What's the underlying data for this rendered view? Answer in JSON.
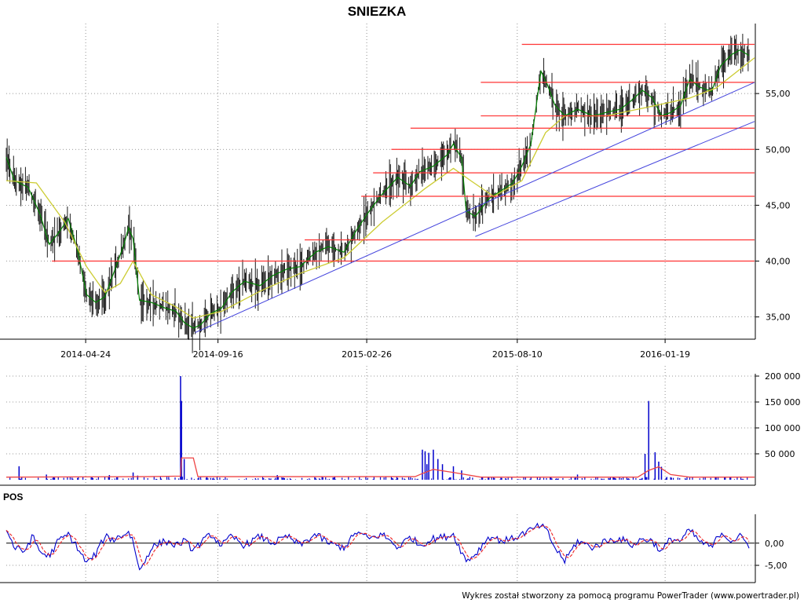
{
  "chart_data": [
    {
      "type": "line",
      "panel": "price",
      "title": "SNIEZKA",
      "series": [],
      "x_ticks": [
        "2014-04-24",
        "2014-09-16",
        "2015-02-26",
        "2015-08-10",
        "2016-01-19"
      ],
      "x_range": [
        "2014-01-27",
        "2016-04-26"
      ],
      "y_ticks": [
        "35,00",
        "40,00",
        "45,00",
        "50,00",
        "55,00"
      ],
      "ylim": [
        33.5,
        60
      ],
      "grid": "dotted",
      "close_path": [
        [
          "2014-01-27",
          49.3
        ],
        [
          "2014-02-05",
          47.2
        ],
        [
          "2014-02-20",
          46.6
        ],
        [
          "2014-03-05",
          44.2
        ],
        [
          "2014-03-15",
          41.5
        ],
        [
          "2014-03-25",
          42.5
        ],
        [
          "2014-04-05",
          43.8
        ],
        [
          "2014-04-15",
          41.0
        ],
        [
          "2014-04-25",
          37.0
        ],
        [
          "2014-05-05",
          36.3
        ],
        [
          "2014-05-15",
          36.8
        ],
        [
          "2014-05-25",
          39.0
        ],
        [
          "2014-06-05",
          41.5
        ],
        [
          "2014-06-10",
          43.0
        ],
        [
          "2014-06-15",
          42.0
        ],
        [
          "2014-06-22",
          36.5
        ],
        [
          "2014-07-05",
          36.3
        ],
        [
          "2014-07-20",
          35.8
        ],
        [
          "2014-08-01",
          35.5
        ],
        [
          "2014-08-10",
          34.5
        ],
        [
          "2014-08-20",
          34.0
        ],
        [
          "2014-08-28",
          34.3
        ],
        [
          "2014-09-08",
          35.3
        ],
        [
          "2014-09-20",
          35.8
        ],
        [
          "2014-10-01",
          37.2
        ],
        [
          "2014-10-15",
          38.2
        ],
        [
          "2014-11-01",
          37.8
        ],
        [
          "2014-11-15",
          38.7
        ],
        [
          "2014-12-01",
          39.3
        ],
        [
          "2014-12-15",
          39.5
        ],
        [
          "2015-01-01",
          40.8
        ],
        [
          "2015-01-15",
          41.3
        ],
        [
          "2015-02-01",
          40.8
        ],
        [
          "2015-02-15",
          42.8
        ],
        [
          "2015-03-01",
          44.5
        ],
        [
          "2015-03-15",
          46.0
        ],
        [
          "2015-04-01",
          47.5
        ],
        [
          "2015-04-15",
          46.7
        ],
        [
          "2015-04-25",
          48.0
        ],
        [
          "2015-05-10",
          48.5
        ],
        [
          "2015-05-25",
          49.5
        ],
        [
          "2015-06-01",
          50.5
        ],
        [
          "2015-06-10",
          49.2
        ],
        [
          "2015-06-15",
          44.5
        ],
        [
          "2015-06-25",
          44.0
        ],
        [
          "2015-07-10",
          45.6
        ],
        [
          "2015-07-25",
          46.4
        ],
        [
          "2015-08-05",
          47.0
        ],
        [
          "2015-08-15",
          48.5
        ],
        [
          "2015-08-25",
          50.5
        ],
        [
          "2015-09-05",
          57.0
        ],
        [
          "2015-09-12",
          55.8
        ],
        [
          "2015-09-20",
          54.0
        ],
        [
          "2015-10-01",
          53.0
        ],
        [
          "2015-10-15",
          53.6
        ],
        [
          "2015-11-01",
          53.0
        ],
        [
          "2015-11-15",
          53.3
        ],
        [
          "2015-12-01",
          53.6
        ],
        [
          "2015-12-15",
          54.5
        ],
        [
          "2015-12-25",
          55.3
        ],
        [
          "2016-01-05",
          54.6
        ],
        [
          "2016-01-15",
          53.0
        ],
        [
          "2016-01-25",
          53.3
        ],
        [
          "2016-02-05",
          53.9
        ],
        [
          "2016-02-15",
          56.3
        ],
        [
          "2016-02-25",
          55.6
        ],
        [
          "2016-03-10",
          55.2
        ],
        [
          "2016-03-20",
          57.5
        ],
        [
          "2016-04-01",
          58.5
        ],
        [
          "2016-04-10",
          58.9
        ],
        [
          "2016-04-20",
          58.4
        ]
      ],
      "moving_average": [
        [
          "2014-01-27",
          47.2
        ],
        [
          "2014-03-01",
          47.0
        ],
        [
          "2014-04-01",
          43.5
        ],
        [
          "2014-04-25",
          39.5
        ],
        [
          "2014-05-15",
          37.2
        ],
        [
          "2014-06-01",
          38.0
        ],
        [
          "2014-06-15",
          40.0
        ],
        [
          "2014-07-05",
          37.0
        ],
        [
          "2014-08-01",
          35.9
        ],
        [
          "2014-08-20",
          34.9
        ],
        [
          "2014-09-20",
          35.5
        ],
        [
          "2014-11-01",
          37.3
        ],
        [
          "2014-12-15",
          38.9
        ],
        [
          "2015-02-01",
          40.3
        ],
        [
          "2015-03-15",
          43.5
        ],
        [
          "2015-05-01",
          46.5
        ],
        [
          "2015-06-01",
          48.3
        ],
        [
          "2015-06-20",
          47.2
        ],
        [
          "2015-07-15",
          45.8
        ],
        [
          "2015-08-15",
          47.2
        ],
        [
          "2015-09-10",
          51.5
        ],
        [
          "2015-10-01",
          53.0
        ],
        [
          "2015-11-15",
          53.0
        ],
        [
          "2016-01-01",
          53.8
        ],
        [
          "2016-02-15",
          54.6
        ],
        [
          "2016-03-15",
          55.5
        ],
        [
          "2016-04-26",
          58.2
        ]
      ],
      "resistance_levels": [
        {
          "value": 40.0,
          "from": "2014-03-18"
        },
        {
          "value": 41.9,
          "from": "2014-12-20"
        },
        {
          "value": 45.8,
          "from": "2015-02-20"
        },
        {
          "value": 47.9,
          "from": "2015-03-05"
        },
        {
          "value": 50.0,
          "from": "2015-03-25"
        },
        {
          "value": 51.9,
          "from": "2015-04-15"
        },
        {
          "value": 53.0,
          "from": "2015-07-01"
        },
        {
          "value": 56.0,
          "from": "2015-07-01"
        },
        {
          "value": 59.4,
          "from": "2015-08-15"
        }
      ],
      "trend_lines": [
        {
          "from": [
            "2014-08-22",
            33.6
          ],
          "to": [
            "2016-04-26",
            56.0
          ]
        },
        {
          "from": [
            "2015-06-25",
            42.2
          ],
          "to": [
            "2016-04-26",
            52.5
          ]
        }
      ]
    },
    {
      "type": "bar",
      "panel": "volume",
      "title": "",
      "series": [],
      "y_ticks": [
        "50 000",
        "100 000",
        "150 000",
        "200 000"
      ],
      "ylim": [
        0,
        200000
      ],
      "volume_spikes": [
        [
          "2014-02-10",
          26000
        ],
        [
          "2014-03-12",
          10000
        ],
        [
          "2014-05-20",
          9000
        ],
        [
          "2014-06-15",
          14000
        ],
        [
          "2014-06-20",
          8000
        ],
        [
          "2014-08-06",
          200000
        ],
        [
          "2014-08-07",
          152000
        ],
        [
          "2014-08-10",
          40000
        ],
        [
          "2014-11-20",
          9000
        ],
        [
          "2015-04-28",
          58000
        ],
        [
          "2015-05-01",
          55000
        ],
        [
          "2015-05-03",
          30000
        ],
        [
          "2015-05-05",
          52000
        ],
        [
          "2015-05-10",
          58000
        ],
        [
          "2015-05-15",
          40000
        ],
        [
          "2015-05-20",
          30000
        ],
        [
          "2015-06-01",
          26000
        ],
        [
          "2015-06-10",
          18000
        ],
        [
          "2015-10-15",
          10000
        ],
        [
          "2015-12-28",
          50000
        ],
        [
          "2016-01-01",
          152000
        ],
        [
          "2016-01-08",
          53000
        ],
        [
          "2016-01-12",
          35000
        ],
        [
          "2016-01-15",
          25000
        ]
      ],
      "volume_average": [
        [
          "2014-01-27",
          5000
        ],
        [
          "2014-07-01",
          6000
        ],
        [
          "2014-08-06",
          7000
        ],
        [
          "2014-08-07",
          42000
        ],
        [
          "2014-08-20",
          42000
        ],
        [
          "2014-08-25",
          6000
        ],
        [
          "2015-04-20",
          6000
        ],
        [
          "2015-04-28",
          12000
        ],
        [
          "2015-05-10",
          20000
        ],
        [
          "2015-06-01",
          14000
        ],
        [
          "2015-07-01",
          5000
        ],
        [
          "2015-12-20",
          5000
        ],
        [
          "2016-01-01",
          18000
        ],
        [
          "2016-01-12",
          25000
        ],
        [
          "2016-01-25",
          10000
        ],
        [
          "2016-02-15",
          5000
        ],
        [
          "2016-04-26",
          5000
        ]
      ]
    },
    {
      "type": "line",
      "panel": "oscillator",
      "title": "POS",
      "series": [],
      "y_ticks": [
        "-5,00",
        "0,00"
      ],
      "ylim": [
        -8,
        6.5
      ],
      "oscillator_points": [
        [
          "2014-01-27",
          3.0
        ],
        [
          "2014-02-05",
          -1.0
        ],
        [
          "2014-02-15",
          -2.0
        ],
        [
          "2014-02-25",
          1.5
        ],
        [
          "2014-03-05",
          -2.0
        ],
        [
          "2014-03-15",
          -3.0
        ],
        [
          "2014-03-25",
          0.5
        ],
        [
          "2014-04-05",
          2.0
        ],
        [
          "2014-04-15",
          -1.0
        ],
        [
          "2014-04-25",
          -4.5
        ],
        [
          "2014-05-05",
          -2.5
        ],
        [
          "2014-05-15",
          1.5
        ],
        [
          "2014-05-25",
          0.8
        ],
        [
          "2014-06-05",
          2.0
        ],
        [
          "2014-06-10",
          2.5
        ],
        [
          "2014-06-15",
          0.5
        ],
        [
          "2014-06-22",
          -6.3
        ],
        [
          "2014-07-05",
          -1.0
        ],
        [
          "2014-07-20",
          0.5
        ],
        [
          "2014-08-01",
          -0.5
        ],
        [
          "2014-08-10",
          0.5
        ],
        [
          "2014-08-20",
          -1.5
        ],
        [
          "2014-08-28",
          0.0
        ],
        [
          "2014-09-08",
          2.0
        ],
        [
          "2014-09-20",
          -0.5
        ],
        [
          "2014-10-01",
          1.5
        ],
        [
          "2014-10-15",
          -0.5
        ],
        [
          "2014-11-01",
          1.5
        ],
        [
          "2014-11-15",
          0.0
        ],
        [
          "2014-12-01",
          1.5
        ],
        [
          "2014-12-15",
          -0.5
        ],
        [
          "2015-01-01",
          2.0
        ],
        [
          "2015-01-15",
          0.0
        ],
        [
          "2015-02-01",
          -1.0
        ],
        [
          "2015-02-15",
          2.5
        ],
        [
          "2015-03-01",
          1.0
        ],
        [
          "2015-03-15",
          2.0
        ],
        [
          "2015-04-01",
          -1.0
        ],
        [
          "2015-04-15",
          1.5
        ],
        [
          "2015-04-25",
          -0.5
        ],
        [
          "2015-05-10",
          1.0
        ],
        [
          "2015-05-25",
          1.5
        ],
        [
          "2015-06-01",
          2.0
        ],
        [
          "2015-06-10",
          -2.0
        ],
        [
          "2015-06-15",
          -4.0
        ],
        [
          "2015-06-25",
          -2.5
        ],
        [
          "2015-07-10",
          1.5
        ],
        [
          "2015-07-25",
          0.5
        ],
        [
          "2015-08-05",
          1.0
        ],
        [
          "2015-08-15",
          2.0
        ],
        [
          "2015-08-25",
          3.0
        ],
        [
          "2015-09-05",
          4.0
        ],
        [
          "2015-09-12",
          2.5
        ],
        [
          "2015-09-20",
          -1.0
        ],
        [
          "2015-10-01",
          -4.0
        ],
        [
          "2015-10-15",
          0.5
        ],
        [
          "2015-11-01",
          -1.0
        ],
        [
          "2015-11-15",
          0.5
        ],
        [
          "2015-12-01",
          1.0
        ],
        [
          "2015-12-15",
          -0.5
        ],
        [
          "2015-12-25",
          1.0
        ],
        [
          "2016-01-05",
          0.5
        ],
        [
          "2016-01-15",
          -2.0
        ],
        [
          "2016-01-25",
          1.0
        ],
        [
          "2016-02-05",
          0.5
        ],
        [
          "2016-02-15",
          3.0
        ],
        [
          "2016-02-25",
          0.5
        ],
        [
          "2016-03-10",
          -1.0
        ],
        [
          "2016-03-20",
          2.5
        ],
        [
          "2016-04-01",
          0.5
        ],
        [
          "2016-04-10",
          1.5
        ],
        [
          "2016-04-20",
          -0.5
        ]
      ]
    }
  ],
  "footer": {
    "credit": "Wykres został stworzony za pomocą programu PowerTrader (www.powertrader.pl)"
  },
  "colors": {
    "price_bars": "#1a1a1a",
    "close_line": "#008000",
    "moving_average": "#cccc33",
    "resistance": "#ff3333",
    "trend_line": "#4444dd",
    "volume": "#0000cc",
    "volume_average": "#ee4444",
    "oscillator": "#0000cc",
    "oscillator_signal": "#ee2222"
  }
}
